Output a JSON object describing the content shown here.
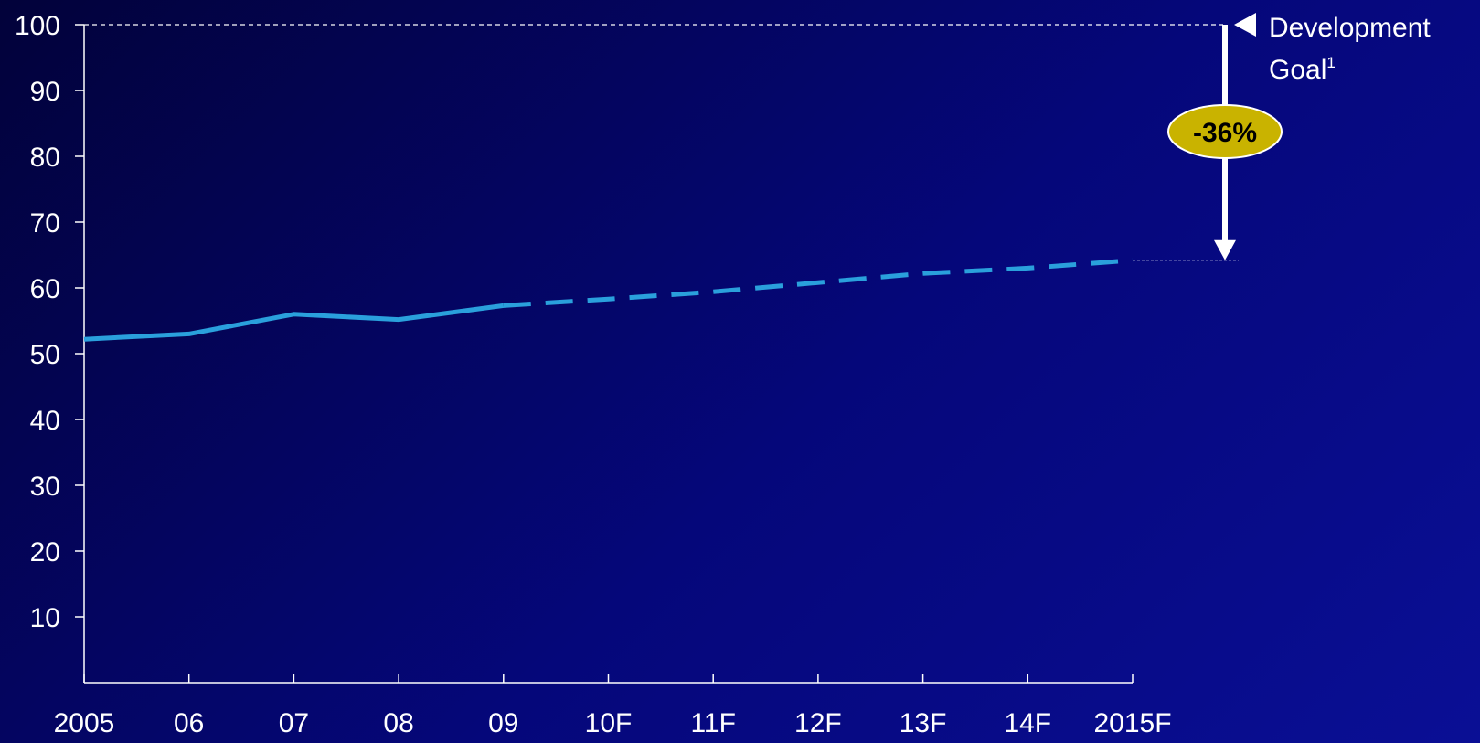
{
  "chart_data": {
    "type": "line",
    "title": "",
    "xlabel": "",
    "ylabel": "",
    "categories": [
      "2005",
      "06",
      "07",
      "08",
      "09",
      "10F",
      "11F",
      "12F",
      "13F",
      "14F",
      "2015F"
    ],
    "ylim": [
      0,
      100
    ],
    "y_ticks": [
      10,
      20,
      30,
      40,
      50,
      60,
      70,
      80,
      90,
      100
    ],
    "series": [
      {
        "style": "solid",
        "values": [
          52.2,
          53.0,
          56.0,
          55.2,
          57.3,
          null,
          null,
          null,
          null,
          null,
          null
        ]
      },
      {
        "style": "dashed",
        "values": [
          null,
          null,
          null,
          null,
          57.3,
          58.3,
          59.4,
          60.8,
          62.2,
          63.0,
          64.2
        ]
      }
    ],
    "goal": {
      "value": 100,
      "label_line1": "Development",
      "label_line2": "Goal",
      "label_superscript": "1"
    },
    "gap": {
      "from": 100,
      "to": 64.2,
      "label": "-36%",
      "badge_color": "#c9b300"
    },
    "line_color": "#2aa0dc",
    "text_color": "#ffffff",
    "grid": false
  }
}
